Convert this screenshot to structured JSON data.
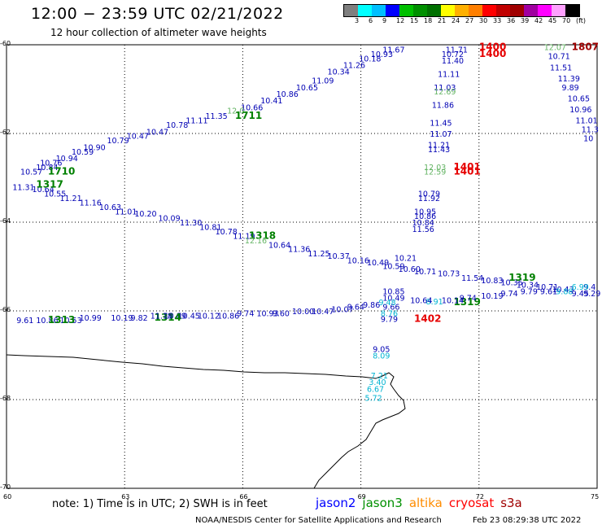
{
  "title": "12:00 − 23:59 UTC 02/21/2022",
  "subtitle": "12 hour collection of altimeter wave heights",
  "legend": {
    "colors": [
      "#7f7f7f",
      "#00ffff",
      "#00bfff",
      "#0000ff",
      "#00c000",
      "#009000",
      "#007000",
      "#ffff00",
      "#ffb000",
      "#ff7f00",
      "#ff0000",
      "#c00000",
      "#a00000",
      "#a000a0",
      "#ff00ff",
      "#ffa0ff",
      "#000000"
    ],
    "labels": [
      "3",
      "6",
      "9",
      "12",
      "15",
      "18",
      "21",
      "24",
      "27",
      "30",
      "33",
      "36",
      "39",
      "42",
      "45",
      "70",
      "(ft)"
    ]
  },
  "axes": {
    "x": {
      "min": 60,
      "max": 75,
      "ticks": [
        "60",
        "63",
        "66",
        "69",
        "72",
        "75"
      ]
    },
    "y": {
      "min": -70,
      "max": -60,
      "ticks": [
        "-60",
        "-62",
        "-64",
        "-66",
        "-68",
        "-70"
      ]
    }
  },
  "note": "note:  1) Time is in UTC;  2) SWH is in feet",
  "satellites": [
    {
      "name": "jason2",
      "color": "#0000ff"
    },
    {
      "name": "jason3",
      "color": "#009000"
    },
    {
      "name": "altika",
      "color": "#ff8c00"
    },
    {
      "name": "cryosat",
      "color": "#ff0000"
    },
    {
      "name": "s3a",
      "color": "#a00000"
    }
  ],
  "footer": "NOAA/NESDIS Center for Satellite Applications and Research",
  "footer_time": "Feb 23 08:29:38 UTC 2022",
  "observations": [
    {
      "text": "11.67",
      "color": "#0000b4",
      "lon": 69.8,
      "lat": -60.1
    },
    {
      "text": "10.93",
      "color": "#0000b4",
      "lon": 69.5,
      "lat": -60.2
    },
    {
      "text": "10.18",
      "color": "#0000b4",
      "lon": 69.2,
      "lat": -60.3
    },
    {
      "text": "11.26",
      "color": "#0000b4",
      "lon": 68.8,
      "lat": -60.45
    },
    {
      "text": "10.34",
      "color": "#0000b4",
      "lon": 68.4,
      "lat": -60.6
    },
    {
      "text": "11.09",
      "color": "#0000b4",
      "lon": 68.0,
      "lat": -60.8
    },
    {
      "text": "10.65",
      "color": "#0000b4",
      "lon": 67.6,
      "lat": -60.95
    },
    {
      "text": "10.86",
      "color": "#0000b4",
      "lon": 67.1,
      "lat": -61.1
    },
    {
      "text": "10.41",
      "color": "#0000b4",
      "lon": 66.7,
      "lat": -61.25
    },
    {
      "text": "10.66",
      "color": "#0000b4",
      "lon": 66.2,
      "lat": -61.4
    },
    {
      "text": "12.0",
      "color": "#64b464",
      "lon": 65.85,
      "lat": -61.48
    },
    {
      "text": "1711",
      "color": "#008000",
      "lon": 66.05,
      "lat": -61.6,
      "bold": true
    },
    {
      "text": "11.35",
      "color": "#0000b4",
      "lon": 65.3,
      "lat": -61.6
    },
    {
      "text": "11.11",
      "color": "#0000b4",
      "lon": 64.8,
      "lat": -61.7
    },
    {
      "text": "10.78",
      "color": "#0000b4",
      "lon": 64.3,
      "lat": -61.8
    },
    {
      "text": "10.47",
      "color": "#0000b4",
      "lon": 63.8,
      "lat": -61.95
    },
    {
      "text": "10.47",
      "color": "#0000b4",
      "lon": 63.3,
      "lat": -62.05
    },
    {
      "text": "10.79",
      "color": "#0000b4",
      "lon": 62.8,
      "lat": -62.15
    },
    {
      "text": "10.90",
      "color": "#0000b4",
      "lon": 62.2,
      "lat": -62.3
    },
    {
      "text": "10.59",
      "color": "#0000b4",
      "lon": 61.9,
      "lat": -62.4
    },
    {
      "text": "10.94",
      "color": "#0000b4",
      "lon": 61.5,
      "lat": -62.55
    },
    {
      "text": "10.76",
      "color": "#0000b4",
      "lon": 61.1,
      "lat": -62.65
    },
    {
      "text": "10.57",
      "color": "#0000b4",
      "lon": 60.6,
      "lat": -62.85
    },
    {
      "text": "10.84",
      "color": "#0000b4",
      "lon": 61.0,
      "lat": -62.75
    },
    {
      "text": "1710",
      "color": "#008000",
      "lon": 61.3,
      "lat": -62.85,
      "bold": true
    },
    {
      "text": "11.31",
      "color": "#0000b4",
      "lon": 60.4,
      "lat": -63.2
    },
    {
      "text": "10.64",
      "color": "#0000b4",
      "lon": 60.9,
      "lat": -63.25
    },
    {
      "text": "1317",
      "color": "#008000",
      "lon": 61.0,
      "lat": -63.15,
      "bold": true
    },
    {
      "text": "10.55",
      "color": "#0000b4",
      "lon": 61.2,
      "lat": -63.35
    },
    {
      "text": "11.21",
      "color": "#0000b4",
      "lon": 61.6,
      "lat": -63.45
    },
    {
      "text": "11.16",
      "color": "#0000b4",
      "lon": 62.1,
      "lat": -63.55
    },
    {
      "text": "10.63",
      "color": "#0000b4",
      "lon": 62.6,
      "lat": -63.65
    },
    {
      "text": "11.01",
      "color": "#0000b4",
      "lon": 63.0,
      "lat": -63.75
    },
    {
      "text": "10.20",
      "color": "#0000b4",
      "lon": 63.5,
      "lat": -63.8
    },
    {
      "text": "10.09",
      "color": "#0000b4",
      "lon": 64.1,
      "lat": -63.9
    },
    {
      "text": "11.30",
      "color": "#0000b4",
      "lon": 64.65,
      "lat": -64.0
    },
    {
      "text": "10.81",
      "color": "#0000b4",
      "lon": 65.15,
      "lat": -64.1
    },
    {
      "text": "10.78",
      "color": "#0000b4",
      "lon": 65.55,
      "lat": -64.2
    },
    {
      "text": "11.19",
      "color": "#0000b4",
      "lon": 66.0,
      "lat": -64.3
    },
    {
      "text": "1318",
      "color": "#008000",
      "lon": 66.4,
      "lat": -64.3,
      "bold": true
    },
    {
      "text": "12.16",
      "color": "#64b464",
      "lon": 66.3,
      "lat": -64.4
    },
    {
      "text": "10.64",
      "color": "#0000b4",
      "lon": 66.9,
      "lat": -64.5
    },
    {
      "text": "11.36",
      "color": "#0000b4",
      "lon": 67.4,
      "lat": -64.6
    },
    {
      "text": "11.25",
      "color": "#0000b4",
      "lon": 67.9,
      "lat": -64.7
    },
    {
      "text": "10.37",
      "color": "#0000b4",
      "lon": 68.4,
      "lat": -64.75
    },
    {
      "text": "10.16",
      "color": "#0000b4",
      "lon": 68.9,
      "lat": -64.85
    },
    {
      "text": "10.49",
      "color": "#0000b4",
      "lon": 69.4,
      "lat": -64.9
    },
    {
      "text": "10.21",
      "color": "#0000b4",
      "lon": 70.1,
      "lat": -64.8
    },
    {
      "text": "10.59",
      "color": "#0000b4",
      "lon": 69.8,
      "lat": -64.98
    },
    {
      "text": "10.60",
      "color": "#0000b4",
      "lon": 70.2,
      "lat": -65.05
    },
    {
      "text": "10.71",
      "color": "#0000b4",
      "lon": 70.6,
      "lat": -65.1
    },
    {
      "text": "10.73",
      "color": "#0000b4",
      "lon": 71.2,
      "lat": -65.15
    },
    {
      "text": "11.54",
      "color": "#0000b4",
      "lon": 71.8,
      "lat": -65.25
    },
    {
      "text": "10.83",
      "color": "#0000b4",
      "lon": 72.3,
      "lat": -65.3
    },
    {
      "text": "10.35",
      "color": "#0000b4",
      "lon": 72.8,
      "lat": -65.35
    },
    {
      "text": "1319",
      "color": "#008000",
      "lon": 73.0,
      "lat": -65.25,
      "bold": true
    },
    {
      "text": "10.34",
      "color": "#0000b4",
      "lon": 73.2,
      "lat": -65.4
    },
    {
      "text": "10.71",
      "color": "#0000b4",
      "lon": 73.7,
      "lat": -65.45
    },
    {
      "text": "10.43",
      "color": "#0000b4",
      "lon": 74.1,
      "lat": -65.5
    },
    {
      "text": "9.4",
      "color": "#0000b4",
      "lon": 74.9,
      "lat": -65.45
    },
    {
      "text": "10.19",
      "color": "#0000b4",
      "lon": 72.3,
      "lat": -65.65
    },
    {
      "text": "9.74",
      "color": "#0000b4",
      "lon": 72.8,
      "lat": -65.6
    },
    {
      "text": "9.79",
      "color": "#0000b4",
      "lon": 73.3,
      "lat": -65.55
    },
    {
      "text": "9.61",
      "color": "#0000b4",
      "lon": 73.8,
      "lat": -65.55
    },
    {
      "text": "9.88",
      "color": "#00b4d2",
      "lon": 74.2,
      "lat": -65.55
    },
    {
      "text": "9.45",
      "color": "#0000b4",
      "lon": 74.6,
      "lat": -65.6
    },
    {
      "text": "6.99",
      "color": "#00b4d2",
      "lon": 74.6,
      "lat": -65.45
    },
    {
      "text": "9.29",
      "color": "#0000b4",
      "lon": 74.9,
      "lat": -65.6
    },
    {
      "text": "1319",
      "color": "#008000",
      "lon": 71.6,
      "lat": -65.8,
      "bold": true
    },
    {
      "text": "10.14",
      "color": "#0000b4",
      "lon": 71.3,
      "lat": -65.75
    },
    {
      "text": "9.74",
      "color": "#0000b4",
      "lon": 71.75,
      "lat": -65.7
    },
    {
      "text": "8.91",
      "color": "#00b4d2",
      "lon": 70.9,
      "lat": -65.78
    },
    {
      "text": "10.64",
      "color": "#0000b4",
      "lon": 70.5,
      "lat": -65.75
    },
    {
      "text": "10.85",
      "color": "#0000b4",
      "lon": 69.8,
      "lat": -65.55
    },
    {
      "text": "10.49",
      "color": "#0000b4",
      "lon": 69.8,
      "lat": -65.7
    },
    {
      "text": "9.66",
      "color": "#0000b4",
      "lon": 69.8,
      "lat": -65.9
    },
    {
      "text": "9.48",
      "color": "#00b4d2",
      "lon": 69.7,
      "lat": -65.8
    },
    {
      "text": "9.86",
      "color": "#0000b4",
      "lon": 69.3,
      "lat": -65.85
    },
    {
      "text": "9.64",
      "color": "#0000b4",
      "lon": 68.9,
      "lat": -65.9
    },
    {
      "text": "10.07",
      "color": "#0000b4",
      "lon": 68.5,
      "lat": -65.95
    },
    {
      "text": "10.47",
      "color": "#0000b4",
      "lon": 68.0,
      "lat": -66.0
    },
    {
      "text": "10.00",
      "color": "#0000b4",
      "lon": 67.5,
      "lat": -66.0
    },
    {
      "text": "9.60",
      "color": "#0000b4",
      "lon": 67.0,
      "lat": -66.05
    },
    {
      "text": "10.93",
      "color": "#0000b4",
      "lon": 66.6,
      "lat": -66.05
    },
    {
      "text": "9.74",
      "color": "#0000b4",
      "lon": 66.1,
      "lat": -66.05
    },
    {
      "text": "10.86",
      "color": "#0000b4",
      "lon": 65.6,
      "lat": -66.1
    },
    {
      "text": "10.12",
      "color": "#0000b4",
      "lon": 65.1,
      "lat": -66.1
    },
    {
      "text": "10.45",
      "color": "#0000b4",
      "lon": 64.6,
      "lat": -66.1
    },
    {
      "text": "10.89",
      "color": "#0000b4",
      "lon": 64.25,
      "lat": -66.1
    },
    {
      "text": "1314",
      "color": "#008000",
      "lon": 64.0,
      "lat": -66.15,
      "bold": true
    },
    {
      "text": "11.18",
      "color": "#0000b4",
      "lon": 63.9,
      "lat": -66.1
    },
    {
      "text": "9.82",
      "color": "#0000b4",
      "lon": 63.4,
      "lat": -66.15
    },
    {
      "text": "10.19",
      "color": "#0000b4",
      "lon": 62.9,
      "lat": -66.15
    },
    {
      "text": "10.99",
      "color": "#0000b4",
      "lon": 62.1,
      "lat": -66.15
    },
    {
      "text": "10.53",
      "color": "#0000b4",
      "lon": 61.6,
      "lat": -66.2
    },
    {
      "text": "10.86",
      "color": "#0000b4",
      "lon": 61.0,
      "lat": -66.2
    },
    {
      "text": "9.61",
      "color": "#0000b4",
      "lon": 60.5,
      "lat": -66.2
    },
    {
      "text": "1313",
      "color": "#008000",
      "lon": 61.3,
      "lat": -66.2,
      "bold": true
    },
    {
      "text": "9.79",
      "color": "#0000b4",
      "lon": 69.75,
      "lat": -66.17
    },
    {
      "text": "8.76",
      "color": "#00b4d2",
      "lon": 69.75,
      "lat": -66.05
    },
    {
      "text": "1402",
      "color": "#e60000",
      "lon": 70.6,
      "lat": -66.17,
      "bold": true
    },
    {
      "text": "9.05",
      "color": "#0000b4",
      "lon": 69.55,
      "lat": -66.85
    },
    {
      "text": "8.09",
      "color": "#00b4d2",
      "lon": 69.55,
      "lat": -67.0
    },
    {
      "text": "7.21",
      "color": "#00b4d2",
      "lon": 69.5,
      "lat": -67.45
    },
    {
      "text": "3.40",
      "color": "#00b4d2",
      "lon": 69.45,
      "lat": -67.6
    },
    {
      "text": "6.67",
      "color": "#00b4d2",
      "lon": 69.4,
      "lat": -67.75
    },
    {
      "text": "5.72",
      "color": "#00b4d2",
      "lon": 69.35,
      "lat": -67.95
    },
    {
      "text": "11.71",
      "color": "#0000b4",
      "lon": 71.4,
      "lat": -60.1
    },
    {
      "text": "10.72",
      "color": "#0000b4",
      "lon": 71.3,
      "lat": -60.2
    },
    {
      "text": "1400",
      "color": "#e60000",
      "lon": 72.25,
      "lat": -60.05,
      "bold": true
    },
    {
      "text": "1400",
      "color": "#e60000",
      "lon": 72.25,
      "lat": -60.2,
      "bold": true
    },
    {
      "text": "11.40",
      "color": "#0000b4",
      "lon": 71.3,
      "lat": -60.35
    },
    {
      "text": "11.11",
      "color": "#0000b4",
      "lon": 71.2,
      "lat": -60.65
    },
    {
      "text": "11.03",
      "color": "#0000b4",
      "lon": 71.1,
      "lat": -60.95
    },
    {
      "text": "12.69",
      "color": "#64b464",
      "lon": 71.1,
      "lat": -61.05
    },
    {
      "text": "11.86",
      "color": "#0000b4",
      "lon": 71.05,
      "lat": -61.35
    },
    {
      "text": "11.45",
      "color": "#0000b4",
      "lon": 71.0,
      "lat": -61.75
    },
    {
      "text": "11.07",
      "color": "#0000b4",
      "lon": 71.0,
      "lat": -62.0
    },
    {
      "text": "11.21",
      "color": "#0000b4",
      "lon": 70.95,
      "lat": -62.25
    },
    {
      "text": "11.43",
      "color": "#0000b4",
      "lon": 70.95,
      "lat": -62.35
    },
    {
      "text": "12.03",
      "color": "#64b464",
      "lon": 70.85,
      "lat": -62.75
    },
    {
      "text": "12.59",
      "color": "#64b464",
      "lon": 70.85,
      "lat": -62.85
    },
    {
      "text": "1401",
      "color": "#e60000",
      "lon": 71.6,
      "lat": -62.75,
      "bold": true
    },
    {
      "text": "1401",
      "color": "#e60000",
      "lon": 71.6,
      "lat": -62.85,
      "bold": true
    },
    {
      "text": "10.79",
      "color": "#0000b4",
      "lon": 70.7,
      "lat": -63.35
    },
    {
      "text": "11.92",
      "color": "#0000b4",
      "lon": 70.7,
      "lat": -63.45
    },
    {
      "text": "10.95",
      "color": "#0000b4",
      "lon": 70.6,
      "lat": -63.75
    },
    {
      "text": "10.86",
      "color": "#0000b4",
      "lon": 70.6,
      "lat": -63.85
    },
    {
      "text": "10.84",
      "color": "#0000b4",
      "lon": 70.55,
      "lat": -64.0
    },
    {
      "text": "11.56",
      "color": "#0000b4",
      "lon": 70.55,
      "lat": -64.15
    },
    {
      "text": "12.07",
      "color": "#64b464",
      "lon": 73.9,
      "lat": -60.05
    },
    {
      "text": "1807",
      "color": "#a00000",
      "lon": 74.6,
      "lat": -60.05,
      "bold": true
    },
    {
      "text": "10.71",
      "color": "#0000b4",
      "lon": 74.0,
      "lat": -60.25
    },
    {
      "text": "11.51",
      "color": "#0000b4",
      "lon": 74.05,
      "lat": -60.5
    },
    {
      "text": "11.39",
      "color": "#0000b4",
      "lon": 74.25,
      "lat": -60.75
    },
    {
      "text": "9.89",
      "color": "#0000b4",
      "lon": 74.35,
      "lat": -60.95
    },
    {
      "text": "10.65",
      "color": "#0000b4",
      "lon": 74.5,
      "lat": -61.2
    },
    {
      "text": "10.96",
      "color": "#0000b4",
      "lon": 74.55,
      "lat": -61.45
    },
    {
      "text": "11.01",
      "color": "#0000b4",
      "lon": 74.7,
      "lat": -61.7
    },
    {
      "text": "11.3",
      "color": "#0000b4",
      "lon": 74.85,
      "lat": -61.9
    },
    {
      "text": "10",
      "color": "#0000b4",
      "lon": 74.9,
      "lat": -62.1
    }
  ]
}
